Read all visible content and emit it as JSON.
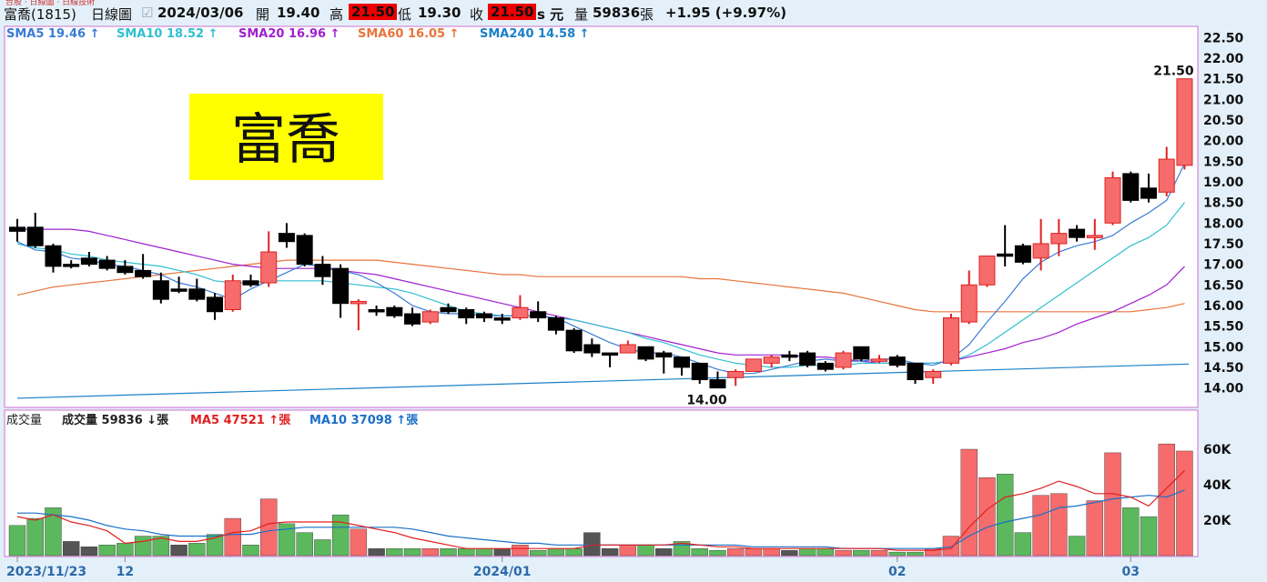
{
  "header": {
    "crumb": "台股 · 日線圖 · 日線技術",
    "stock": "富喬(1815)",
    "chart_kind": "日線圖",
    "date": "2024/03/06",
    "open_label": "開",
    "open": "19.40",
    "high_label": "高",
    "high": "21.50",
    "low_label": "低",
    "low": "19.30",
    "close_label": "收",
    "close": "21.50",
    "s_unit": "s 元",
    "vol_label": "量",
    "vol": "59836",
    "vol_unit": "張",
    "change": "+1.95 (+9.97%)"
  },
  "overlay_title": "富喬",
  "sma_legend": [
    {
      "label": "SMA5 19.46",
      "color": "#3a7bd5"
    },
    {
      "label": "SMA10 18.52",
      "color": "#30c0d0"
    },
    {
      "label": "SMA20 16.96",
      "color": "#a020d0"
    },
    {
      "label": "SMA60 16.05",
      "color": "#e8743b"
    },
    {
      "label": "SMA240 14.58",
      "color": "#1a80c8"
    }
  ],
  "vol_legend": {
    "title": "成交量",
    "vol": "成交量 59836",
    "vol_unit": "張",
    "ma5": "MA5 47521",
    "ma5_unit": "張",
    "ma10": "MA10 37098",
    "ma10_unit": "張"
  },
  "colors": {
    "up": "#f66b6b",
    "up_edge": "#d22",
    "down": "#000000",
    "up_vol": "#f66b6b",
    "down_vol": "#5cb85c",
    "flat_vol": "#555555"
  },
  "chart_data": {
    "type": "candlestick",
    "price_axis": {
      "ticks": [
        "22.50",
        "22.00",
        "21.50",
        "21.00",
        "20.50",
        "20.00",
        "19.50",
        "19.00",
        "18.50",
        "18.00",
        "17.50",
        "17.00",
        "16.50",
        "16.00",
        "15.50",
        "15.00",
        "14.50",
        "14.00"
      ],
      "min": 13.55,
      "max": 22.75
    },
    "volume_axis": {
      "ticks": [
        "60K",
        "40K",
        "20K"
      ]
    },
    "x_labels": [
      {
        "text": "2023/11/23",
        "i": 0
      },
      {
        "text": "12",
        "i": 6
      },
      {
        "text": "2024/01",
        "i": 27
      },
      {
        "text": "02",
        "i": 49
      },
      {
        "text": "03",
        "i": 62
      }
    ],
    "annotations": [
      {
        "text": "21.50",
        "i": 65
      },
      {
        "text": "14.00",
        "i": 39
      }
    ],
    "candles": [
      [
        17.9,
        17.8,
        18.1,
        17.55
      ],
      [
        17.9,
        17.45,
        18.25,
        17.4
      ],
      [
        17.45,
        16.95,
        17.5,
        16.8
      ],
      [
        17.0,
        17.0,
        17.1,
        16.9
      ],
      [
        17.15,
        17.0,
        17.3,
        16.95
      ],
      [
        17.1,
        16.9,
        17.2,
        16.85
      ],
      [
        16.95,
        16.8,
        17.1,
        16.75
      ],
      [
        16.85,
        16.7,
        17.25,
        16.65
      ],
      [
        16.6,
        16.15,
        16.8,
        16.05
      ],
      [
        16.4,
        16.4,
        16.7,
        16.3
      ],
      [
        16.4,
        16.15,
        16.65,
        16.1
      ],
      [
        16.2,
        15.85,
        16.3,
        15.65
      ],
      [
        15.9,
        16.6,
        16.75,
        15.85
      ],
      [
        16.6,
        16.5,
        16.75,
        16.45
      ],
      [
        16.55,
        17.3,
        17.8,
        16.45
      ],
      [
        17.75,
        17.55,
        18.0,
        17.4
      ],
      [
        17.7,
        17.0,
        17.75,
        16.95
      ],
      [
        17.0,
        16.7,
        17.2,
        16.5
      ],
      [
        16.9,
        16.05,
        17.0,
        15.7
      ],
      [
        16.05,
        16.1,
        16.15,
        15.4
      ],
      [
        15.9,
        15.9,
        16.0,
        15.75
      ],
      [
        15.95,
        15.75,
        16.0,
        15.7
      ],
      [
        15.8,
        15.55,
        15.95,
        15.5
      ],
      [
        15.6,
        15.85,
        15.9,
        15.55
      ],
      [
        15.95,
        15.85,
        16.05,
        15.8
      ],
      [
        15.9,
        15.7,
        15.95,
        15.55
      ],
      [
        15.8,
        15.7,
        15.85,
        15.6
      ],
      [
        15.7,
        15.7,
        15.8,
        15.55
      ],
      [
        15.7,
        15.95,
        16.25,
        15.65
      ],
      [
        15.85,
        15.7,
        16.1,
        15.6
      ],
      [
        15.7,
        15.4,
        15.75,
        15.3
      ],
      [
        15.4,
        14.9,
        15.45,
        14.85
      ],
      [
        15.05,
        14.85,
        15.2,
        14.75
      ],
      [
        14.85,
        14.85,
        14.85,
        14.5
      ],
      [
        14.85,
        15.05,
        15.15,
        14.85
      ],
      [
        15.0,
        14.7,
        15.0,
        14.65
      ],
      [
        14.85,
        14.75,
        14.9,
        14.35
      ],
      [
        14.75,
        14.5,
        14.75,
        14.3
      ],
      [
        14.6,
        14.2,
        14.6,
        14.1
      ],
      [
        14.2,
        14.0,
        14.4,
        14.0
      ],
      [
        14.25,
        14.4,
        14.45,
        14.05
      ],
      [
        14.4,
        14.7,
        14.7,
        14.4
      ],
      [
        14.6,
        14.75,
        14.8,
        14.5
      ],
      [
        14.8,
        14.8,
        14.9,
        14.65
      ],
      [
        14.85,
        14.55,
        14.9,
        14.5
      ],
      [
        14.6,
        14.45,
        14.65,
        14.4
      ],
      [
        14.5,
        14.85,
        14.9,
        14.45
      ],
      [
        15.0,
        14.7,
        15.0,
        14.65
      ],
      [
        14.65,
        14.7,
        14.8,
        14.6
      ],
      [
        14.75,
        14.55,
        14.8,
        14.5
      ],
      [
        14.6,
        14.2,
        14.6,
        14.1
      ],
      [
        14.25,
        14.4,
        14.45,
        14.1
      ],
      [
        14.6,
        15.7,
        15.8,
        14.55
      ],
      [
        15.6,
        16.5,
        16.85,
        15.55
      ],
      [
        16.5,
        17.2,
        17.2,
        16.45
      ],
      [
        17.25,
        17.2,
        17.95,
        16.95
      ],
      [
        17.45,
        17.05,
        17.5,
        17.0
      ],
      [
        17.15,
        17.5,
        18.1,
        16.85
      ],
      [
        17.5,
        17.75,
        18.1,
        17.2
      ],
      [
        17.85,
        17.65,
        17.95,
        17.55
      ],
      [
        17.65,
        17.7,
        18.1,
        17.35
      ],
      [
        18.0,
        19.1,
        19.25,
        17.95
      ],
      [
        19.2,
        18.55,
        19.25,
        18.5
      ],
      [
        18.85,
        18.6,
        19.2,
        18.5
      ],
      [
        18.75,
        19.55,
        19.85,
        18.65
      ],
      [
        19.4,
        21.5,
        21.5,
        19.3
      ]
    ],
    "volumes": [
      17,
      21,
      27,
      8,
      5,
      6,
      7,
      11,
      11,
      6,
      7,
      12,
      21,
      6,
      32,
      18,
      13,
      9,
      23,
      15,
      4,
      4,
      4,
      4,
      4,
      4,
      4,
      4,
      6,
      3,
      4,
      4,
      13,
      4,
      6,
      6,
      4,
      8,
      4,
      3,
      4,
      4,
      4,
      3,
      4,
      4,
      3,
      3,
      3,
      2,
      2,
      4,
      11,
      60,
      44,
      46,
      13,
      34,
      35,
      11,
      31,
      58,
      27,
      22,
      63,
      59
    ],
    "sma5": [
      17.55,
      17.35,
      17.3,
      17.15,
      17.1,
      17.0,
      16.95,
      16.85,
      16.75,
      16.55,
      16.45,
      16.3,
      16.15,
      16.4,
      16.6,
      16.8,
      17.0,
      16.95,
      16.85,
      16.75,
      16.55,
      16.3,
      16.0,
      15.85,
      15.8,
      15.8,
      15.75,
      15.75,
      15.75,
      15.75,
      15.7,
      15.5,
      15.3,
      15.1,
      14.95,
      14.85,
      14.85,
      14.75,
      14.6,
      14.45,
      14.35,
      14.35,
      14.45,
      14.55,
      14.65,
      14.7,
      14.65,
      14.65,
      14.7,
      14.7,
      14.6,
      14.55,
      14.7,
      15.05,
      15.6,
      16.1,
      16.65,
      17.05,
      17.3,
      17.45,
      17.55,
      17.7,
      18.0,
      18.25,
      18.55,
      19.45
    ],
    "sma10": [
      17.5,
      17.4,
      17.35,
      17.25,
      17.2,
      17.1,
      17.05,
      17.0,
      16.95,
      16.85,
      16.75,
      16.6,
      16.55,
      16.55,
      16.6,
      16.6,
      16.6,
      16.6,
      16.55,
      16.5,
      16.45,
      16.4,
      16.3,
      16.15,
      16.0,
      15.85,
      15.8,
      15.75,
      15.75,
      15.75,
      15.7,
      15.65,
      15.55,
      15.45,
      15.35,
      15.2,
      15.1,
      14.95,
      14.8,
      14.7,
      14.6,
      14.55,
      14.5,
      14.5,
      14.55,
      14.55,
      14.55,
      14.6,
      14.6,
      14.6,
      14.6,
      14.6,
      14.65,
      14.8,
      15.05,
      15.35,
      15.65,
      15.95,
      16.25,
      16.55,
      16.85,
      17.15,
      17.45,
      17.65,
      17.95,
      18.5
    ],
    "sma20": [
      17.85,
      17.85,
      17.85,
      17.85,
      17.8,
      17.7,
      17.6,
      17.5,
      17.4,
      17.3,
      17.2,
      17.1,
      17.0,
      16.95,
      16.9,
      16.9,
      16.9,
      16.9,
      16.85,
      16.8,
      16.75,
      16.65,
      16.55,
      16.45,
      16.35,
      16.25,
      16.15,
      16.05,
      15.95,
      15.85,
      15.75,
      15.65,
      15.55,
      15.45,
      15.35,
      15.25,
      15.15,
      15.05,
      14.95,
      14.85,
      14.8,
      14.8,
      14.8,
      14.8,
      14.75,
      14.75,
      14.7,
      14.65,
      14.6,
      14.6,
      14.6,
      14.6,
      14.65,
      14.75,
      14.85,
      14.95,
      15.1,
      15.2,
      15.35,
      15.55,
      15.7,
      15.85,
      16.05,
      16.25,
      16.5,
      16.95
    ],
    "sma60": [
      16.25,
      16.35,
      16.45,
      16.5,
      16.55,
      16.6,
      16.65,
      16.7,
      16.75,
      16.8,
      16.85,
      16.9,
      16.95,
      17.0,
      17.05,
      17.1,
      17.1,
      17.1,
      17.1,
      17.1,
      17.1,
      17.05,
      17.0,
      16.95,
      16.9,
      16.85,
      16.8,
      16.75,
      16.75,
      16.7,
      16.7,
      16.7,
      16.7,
      16.7,
      16.7,
      16.7,
      16.7,
      16.7,
      16.65,
      16.65,
      16.6,
      16.55,
      16.5,
      16.45,
      16.4,
      16.35,
      16.3,
      16.2,
      16.1,
      16.0,
      15.9,
      15.85,
      15.85,
      15.85,
      15.85,
      15.85,
      15.85,
      15.85,
      15.85,
      15.85,
      15.85,
      15.85,
      15.85,
      15.9,
      15.95,
      16.05
    ],
    "sma240_start": 13.75,
    "sma240_end": 14.58,
    "vol_ma5": [
      22,
      20,
      23,
      19,
      17,
      14,
      7,
      8,
      10,
      8,
      8,
      10,
      13,
      14,
      18,
      19,
      19,
      19,
      19,
      17,
      15,
      13,
      10,
      8,
      6,
      4,
      4,
      4,
      4,
      4,
      4,
      4,
      6,
      6,
      6,
      6,
      6,
      7,
      6,
      5,
      5,
      4,
      4,
      4,
      4,
      4,
      4,
      4,
      4,
      3,
      3,
      3,
      4,
      16,
      26,
      33,
      35,
      38,
      42,
      39,
      35,
      35,
      33,
      28,
      38,
      48
    ],
    "vol_ma10": [
      24,
      24,
      23,
      22,
      20,
      17,
      15,
      14,
      12,
      11,
      11,
      11,
      12,
      12,
      14,
      15,
      16,
      16,
      16,
      16,
      16,
      16,
      15,
      13,
      11,
      10,
      9,
      8,
      7,
      7,
      6,
      6,
      6,
      6,
      6,
      6,
      6,
      6,
      6,
      6,
      6,
      5,
      5,
      5,
      5,
      5,
      4,
      4,
      4,
      4,
      4,
      4,
      5,
      11,
      16,
      19,
      21,
      23,
      27,
      28,
      30,
      32,
      33,
      34,
      33,
      37
    ]
  }
}
